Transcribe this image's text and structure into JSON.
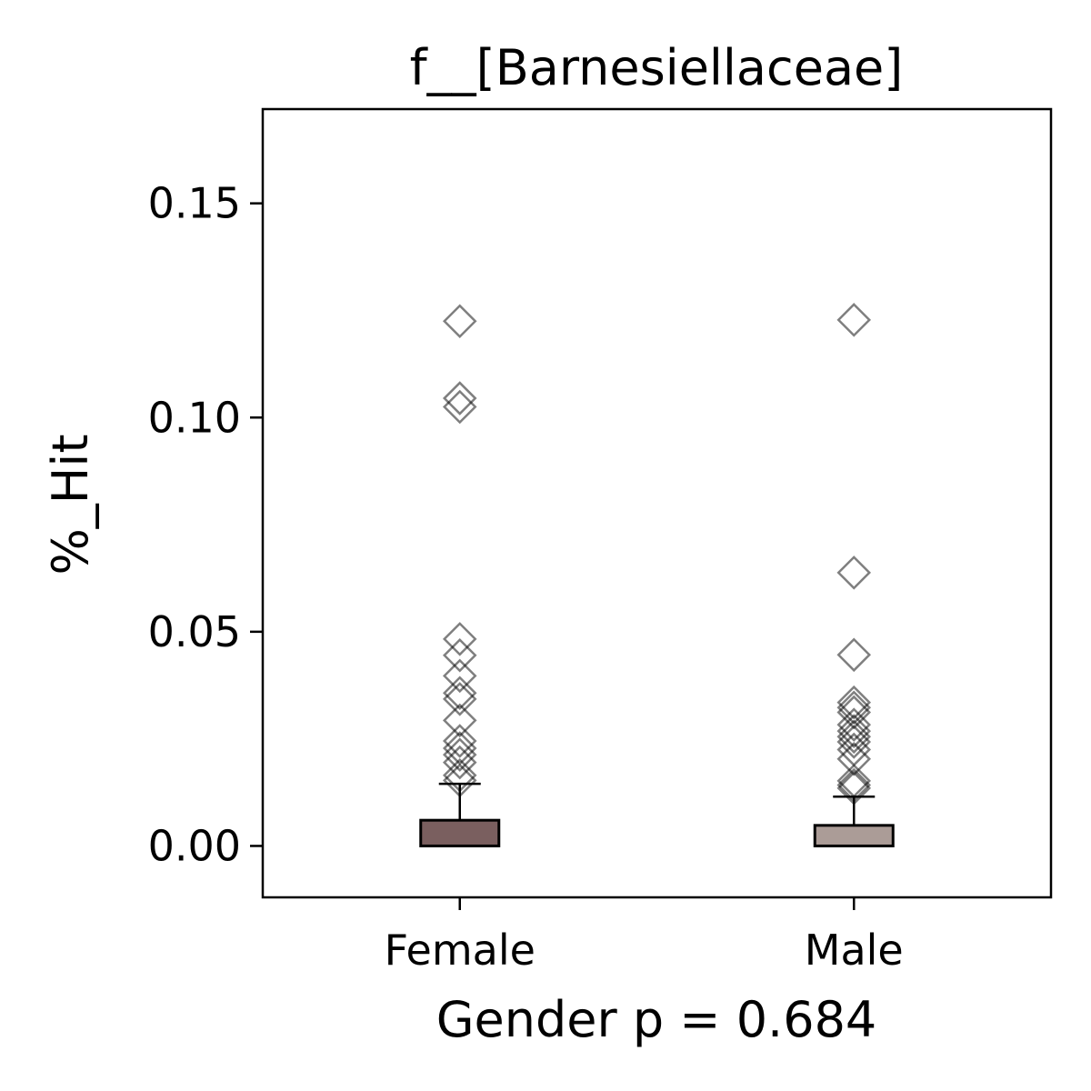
{
  "chart_data": {
    "type": "box",
    "title": "f__[Barnesiellaceae]",
    "xlabel": "Gender p = 0.684",
    "ylabel": "%_Hit",
    "ylim": [
      -0.012,
      0.172
    ],
    "yticks": [
      0.0,
      0.05,
      0.1,
      0.15
    ],
    "ytick_labels": [
      "0.00",
      "0.05",
      "0.10",
      "0.15"
    ],
    "grid": false,
    "categories": [
      "Female",
      "Male"
    ],
    "boxes": [
      {
        "category": "Female",
        "color": "#7a5f5f",
        "q1": 0.0,
        "median": 0.0,
        "q3": 0.006,
        "whisker_low": 0.0,
        "whisker_high": 0.0145,
        "outliers": [
          0.1225,
          0.1045,
          0.1025,
          0.0483,
          0.0445,
          0.0397,
          0.0357,
          0.0343,
          0.0293,
          0.0245,
          0.0228,
          0.0213,
          0.0195,
          0.0165,
          0.0153
        ]
      },
      {
        "category": "Male",
        "color": "#ab9c97",
        "q1": 0.0,
        "median": 0.0,
        "q3": 0.0048,
        "whisker_low": 0.0,
        "whisker_high": 0.0115,
        "outliers": [
          0.1228,
          0.0638,
          0.0446,
          0.0335,
          0.0323,
          0.0312,
          0.0283,
          0.0268,
          0.0255,
          0.0243,
          0.0225,
          0.0203,
          0.0152,
          0.0142,
          0.0135
        ]
      }
    ],
    "outlier_marker": "diamond",
    "outlier_color": "#000000"
  }
}
